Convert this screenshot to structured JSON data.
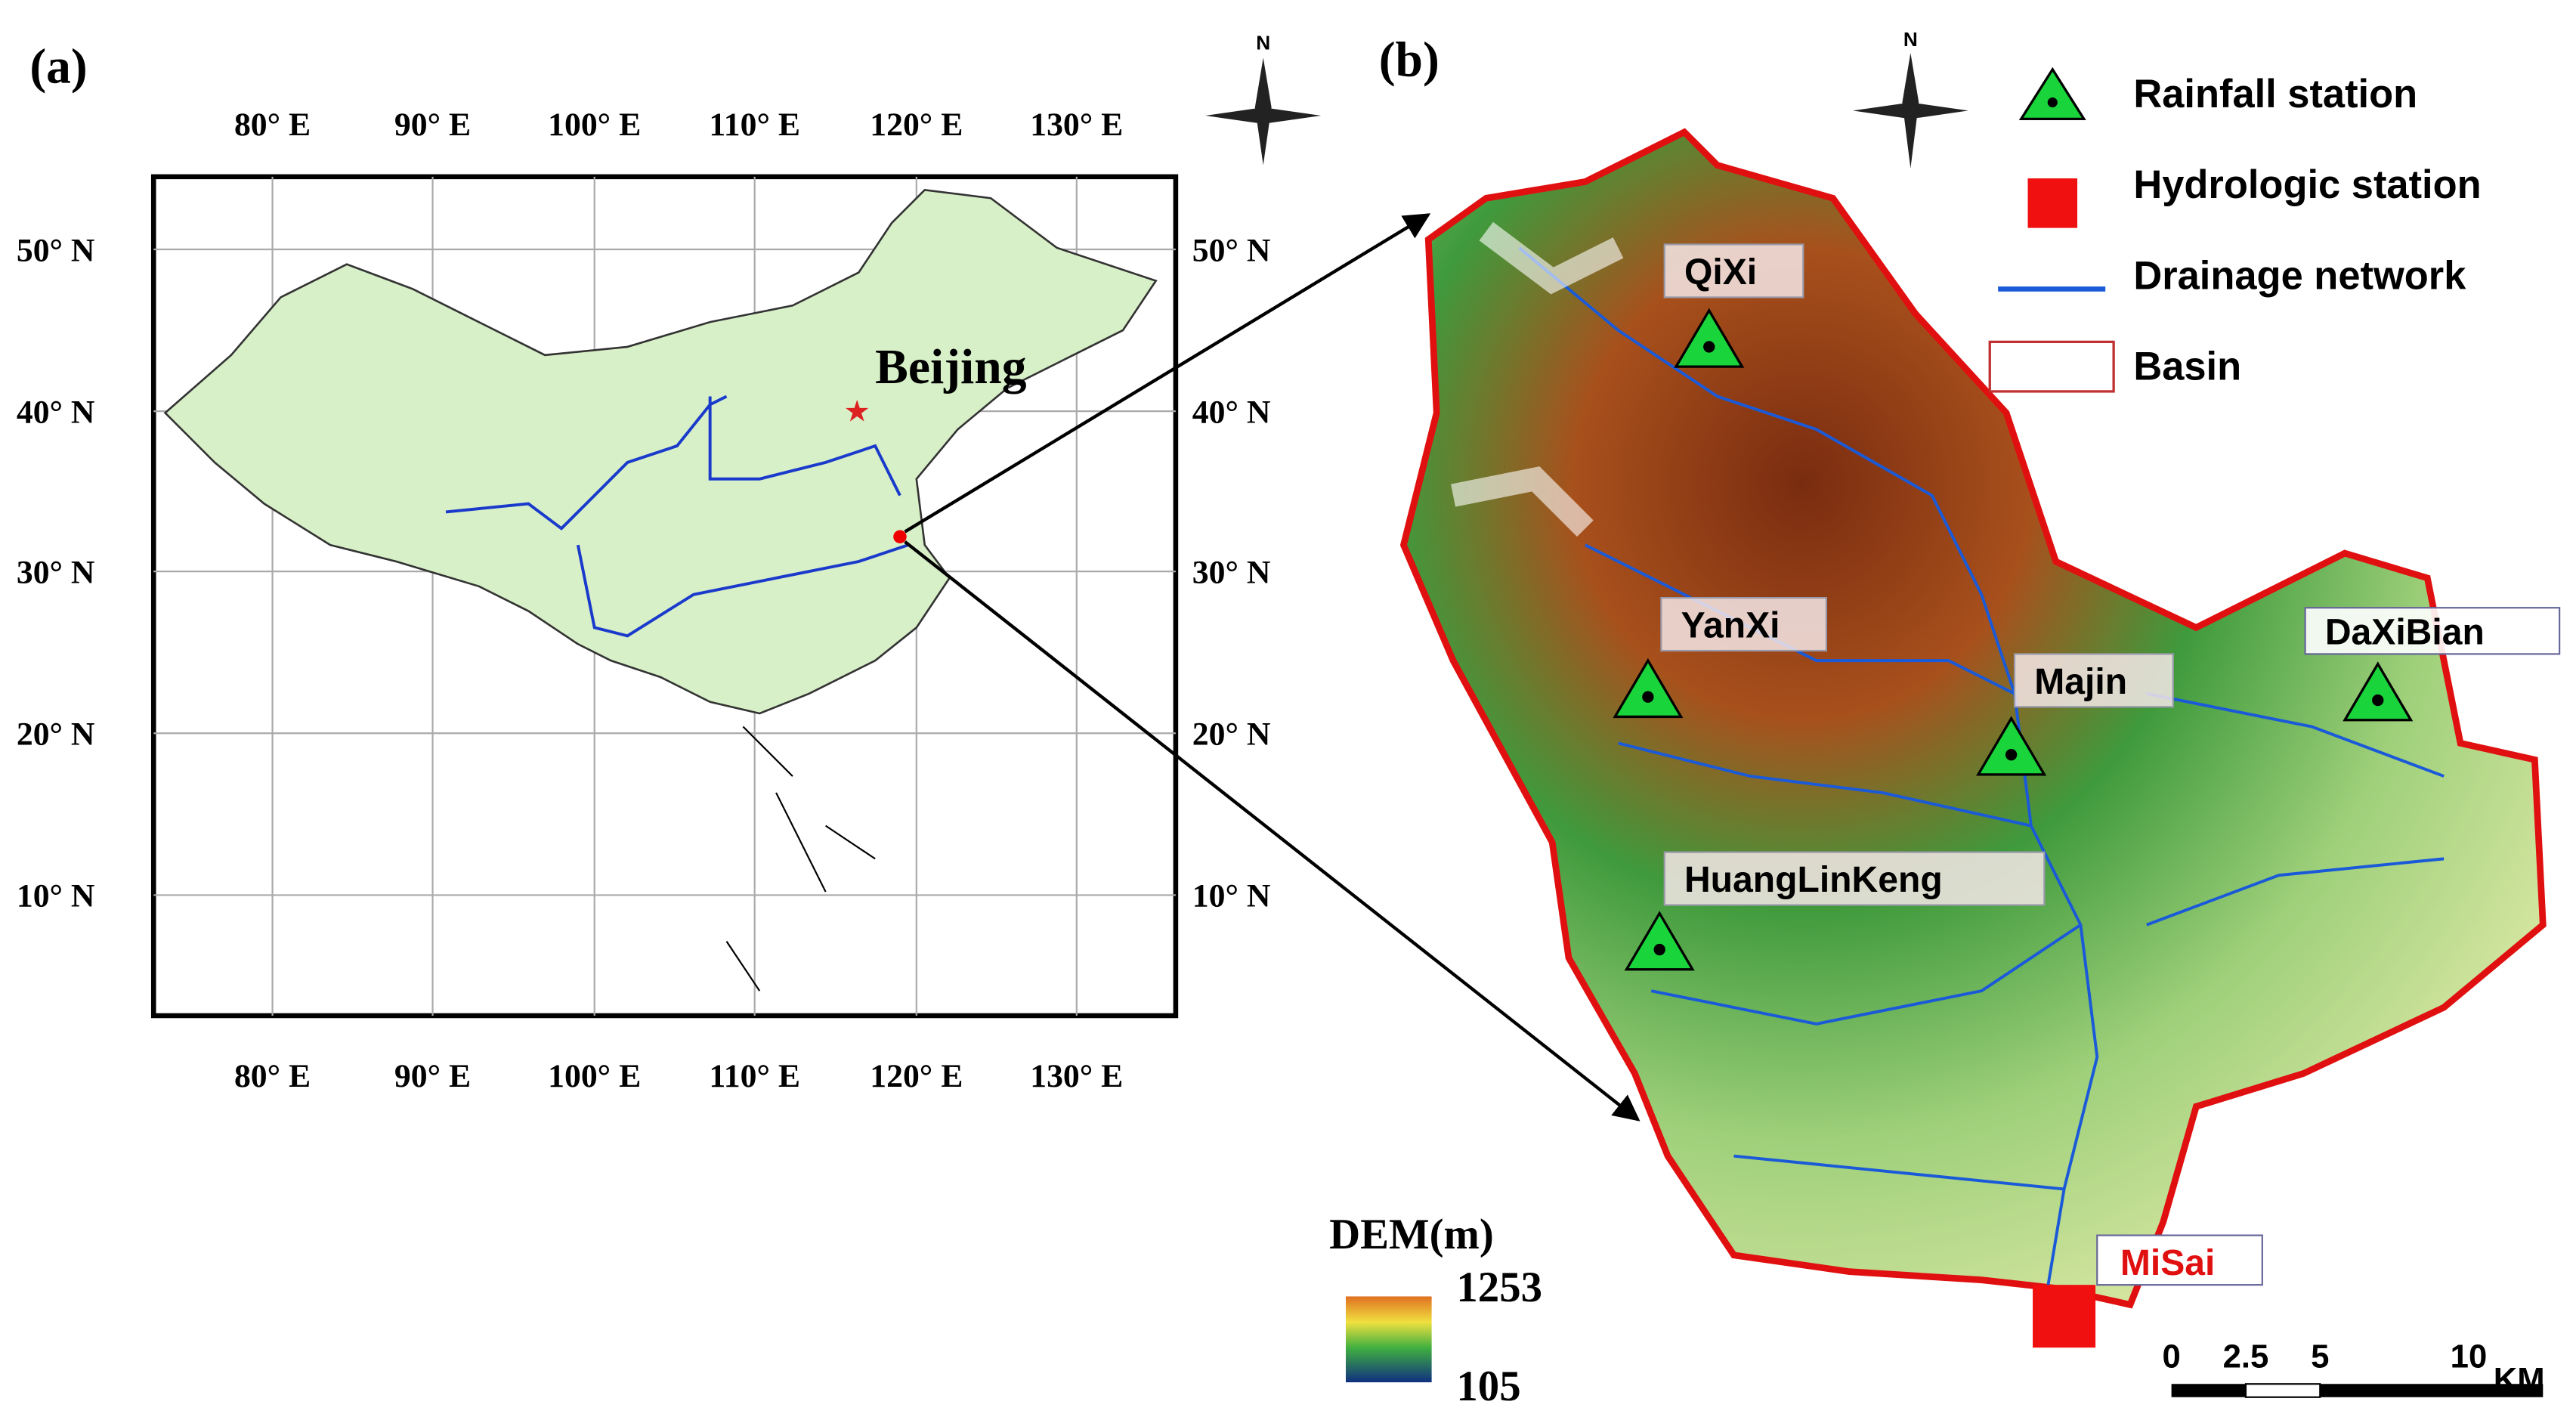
{
  "panel_a": {
    "label": "(a)",
    "north": "N",
    "city": "Beijing",
    "lon_labels": [
      "80° E",
      "90° E",
      "100° E",
      "110° E",
      "120° E",
      "130° E"
    ],
    "lat_labels": [
      "50° N",
      "40° N",
      "30° N",
      "20° N",
      "10° N"
    ]
  },
  "panel_b": {
    "label": "(b)",
    "north": "N",
    "stations": [
      "QiXi",
      "YanXi",
      "Majin",
      "DaXiBian",
      "HuangLinKeng"
    ],
    "hydro_station": "MiSai",
    "legend": [
      "Rainfall station",
      "Hydrologic station",
      "Drainage network",
      "Basin"
    ],
    "dem": {
      "title": "DEM(m)",
      "max": 1253,
      "min": 105
    },
    "scale": {
      "ticks": [
        0,
        2.5,
        5,
        10
      ],
      "unit": "KM"
    }
  }
}
